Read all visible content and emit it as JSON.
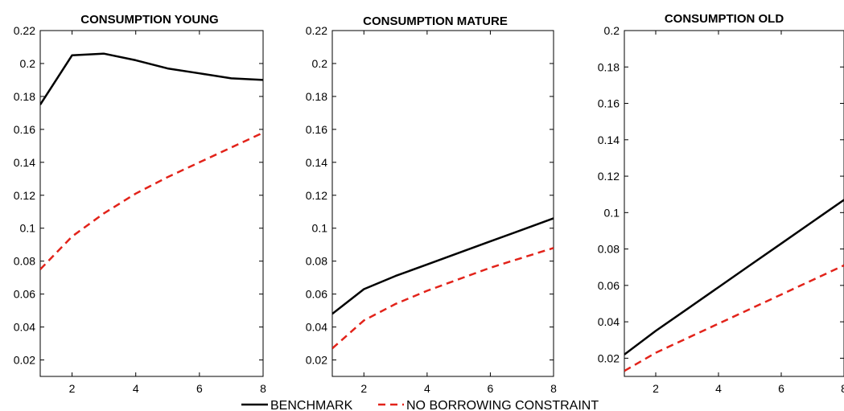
{
  "colors": {
    "benchmark": "#000000",
    "no_borrowing": "#e2231a",
    "axes": "#000000",
    "background": "#ffffff"
  },
  "legend": {
    "placement": "bottom-center",
    "entries": [
      {
        "label": "BENCHMARK",
        "style": "solid",
        "color": "#000000"
      },
      {
        "label": "NO BORROWING CONSTRAINT",
        "style": "dashed",
        "color": "#e2231a"
      }
    ]
  },
  "chart_data": [
    {
      "type": "line",
      "title": "CONSUMPTION YOUNG",
      "xlabel": "",
      "ylabel": "",
      "xlim": [
        1,
        8
      ],
      "ylim": [
        0.01,
        0.22
      ],
      "xticks": [
        2,
        4,
        6,
        8
      ],
      "xtick_labels": [
        "2",
        "4",
        "6",
        "8"
      ],
      "yticks": [
        0.02,
        0.04,
        0.06,
        0.08,
        0.1,
        0.12,
        0.14,
        0.16,
        0.18,
        0.2,
        0.22
      ],
      "ytick_labels": [
        "0.02",
        "0.04",
        "0.06",
        "0.08",
        "0.1",
        "0.12",
        "0.14",
        "0.16",
        "0.18",
        "0.2",
        "0.22"
      ],
      "grid": false,
      "x": [
        1,
        2,
        3,
        4,
        5,
        6,
        7,
        8
      ],
      "series": [
        {
          "name": "BENCHMARK",
          "values": [
            0.175,
            0.205,
            0.206,
            0.202,
            0.197,
            0.194,
            0.191,
            0.19
          ]
        },
        {
          "name": "NO BORROWING CONSTRAINT",
          "values": [
            0.075,
            0.095,
            0.109,
            0.121,
            0.131,
            0.14,
            0.149,
            0.158
          ]
        }
      ]
    },
    {
      "type": "line",
      "title": "CONSUMPTION MATURE",
      "xlabel": "",
      "ylabel": "",
      "xlim": [
        1,
        8
      ],
      "ylim": [
        0.01,
        0.22
      ],
      "xticks": [
        2,
        4,
        6,
        8
      ],
      "xtick_labels": [
        "2",
        "4",
        "6",
        "8"
      ],
      "yticks": [
        0.02,
        0.04,
        0.06,
        0.08,
        0.1,
        0.12,
        0.14,
        0.16,
        0.18,
        0.2,
        0.22
      ],
      "ytick_labels": [
        "0.02",
        "0.04",
        "0.06",
        "0.08",
        "0.1",
        "0.12",
        "0.14",
        "0.16",
        "0.18",
        "0.2",
        "0.22"
      ],
      "grid": false,
      "x": [
        1,
        2,
        3,
        4,
        5,
        6,
        7,
        8
      ],
      "series": [
        {
          "name": "BENCHMARK",
          "values": [
            0.048,
            0.063,
            0.071,
            0.078,
            0.085,
            0.092,
            0.099,
            0.106
          ]
        },
        {
          "name": "NO BORROWING CONSTRAINT",
          "values": [
            0.027,
            0.044,
            0.054,
            0.062,
            0.069,
            0.076,
            0.082,
            0.088
          ]
        }
      ]
    },
    {
      "type": "line",
      "title": "CONSUMPTION OLD",
      "xlabel": "",
      "ylabel": "",
      "xlim": [
        1,
        8
      ],
      "ylim": [
        0.01,
        0.2
      ],
      "xticks": [
        2,
        4,
        6,
        8
      ],
      "xtick_labels": [
        "2",
        "4",
        "6",
        "8"
      ],
      "yticks": [
        0.02,
        0.04,
        0.06,
        0.08,
        0.1,
        0.12,
        0.14,
        0.16,
        0.18,
        0.2
      ],
      "ytick_labels": [
        "0.02",
        "0.04",
        "0.06",
        "0.08",
        "0.1",
        "0.12",
        "0.14",
        "0.16",
        "0.18",
        "0.2"
      ],
      "grid": false,
      "x": [
        1,
        2,
        3,
        4,
        5,
        6,
        7,
        8
      ],
      "series": [
        {
          "name": "BENCHMARK",
          "values": [
            0.022,
            0.035,
            0.047,
            0.059,
            0.071,
            0.083,
            0.095,
            0.107
          ]
        },
        {
          "name": "NO BORROWING CONSTRAINT",
          "values": [
            0.013,
            0.023,
            0.031,
            0.039,
            0.047,
            0.055,
            0.063,
            0.071
          ]
        }
      ]
    }
  ]
}
